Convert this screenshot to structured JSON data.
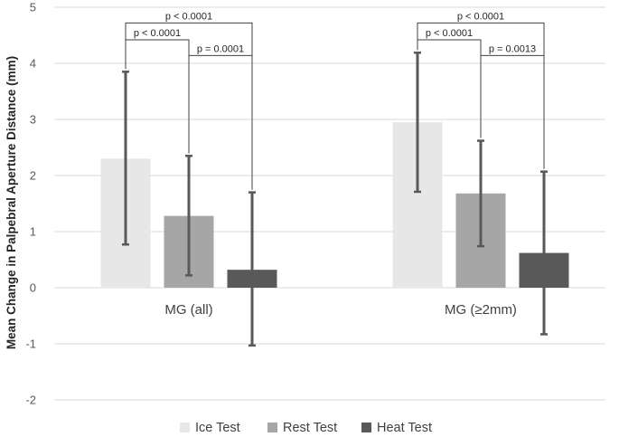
{
  "chart_data": {
    "type": "bar",
    "ylabel": "Mean Change in Palpebral Aperture Distance (mm)",
    "ylim": [
      -2,
      5
    ],
    "yticks": [
      -2,
      -1,
      0,
      1,
      2,
      3,
      4,
      5
    ],
    "grid": true,
    "legend": "bottom",
    "categories": [
      "MG (all)",
      "MG (≥2mm)"
    ],
    "series": [
      {
        "name": "Ice Test",
        "color": "#e7e7e7",
        "values": [
          2.3,
          2.95
        ],
        "error_low": [
          0.77,
          1.71
        ],
        "error_high": [
          3.85,
          4.19
        ]
      },
      {
        "name": "Rest Test",
        "color": "#a6a6a6",
        "values": [
          1.28,
          1.68
        ],
        "error_low": [
          0.22,
          0.74
        ],
        "error_high": [
          2.35,
          2.62
        ]
      },
      {
        "name": "Heat Test",
        "color": "#595959",
        "values": [
          0.32,
          0.62
        ],
        "error_low": [
          -1.03,
          -0.83
        ],
        "error_high": [
          1.7,
          2.07
        ]
      }
    ],
    "annotations": [
      {
        "category": 0,
        "from": 0,
        "to": 2,
        "level": 4.72,
        "label": "p < 0.0001"
      },
      {
        "category": 0,
        "from": 0,
        "to": 1,
        "level": 4.42,
        "label": "p < 0.0001"
      },
      {
        "category": 0,
        "from": 1,
        "to": 2,
        "level": 4.14,
        "label": "p = 0.0001"
      },
      {
        "category": 1,
        "from": 0,
        "to": 2,
        "level": 4.72,
        "label": "p < 0.0001"
      },
      {
        "category": 1,
        "from": 0,
        "to": 1,
        "level": 4.42,
        "label": "p < 0.0001"
      },
      {
        "category": 1,
        "from": 1,
        "to": 2,
        "level": 4.14,
        "label": "p = 0.0013"
      }
    ]
  }
}
